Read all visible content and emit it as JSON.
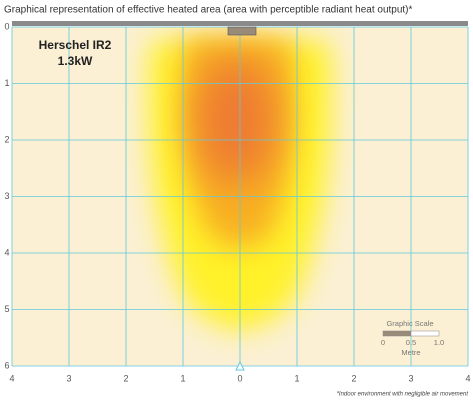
{
  "chart_data": {
    "type": "heat-area",
    "title": "Graphical representation of effective heated area (area with perceptible radiant heat output)*",
    "product": "Herschel IR2",
    "power": "1.3kW",
    "xlim": [
      -4,
      4
    ],
    "xticks": [
      {
        "value": -4,
        "label": "4"
      },
      {
        "value": -3,
        "label": "3"
      },
      {
        "value": -2,
        "label": "2"
      },
      {
        "value": -1,
        "label": "1"
      },
      0,
      1,
      2,
      3,
      4
    ],
    "ylim": [
      0,
      6
    ],
    "yticks": [
      0,
      1,
      2,
      3,
      4,
      5,
      6
    ],
    "grid": true,
    "grid_color": "#5fc8e0",
    "scale": {
      "title": "Graphic Scale",
      "labels": [
        "0",
        "0.5",
        "1.0"
      ],
      "unit": "Metre"
    },
    "footnote": "*Indoor environment with negligible air movement"
  }
}
